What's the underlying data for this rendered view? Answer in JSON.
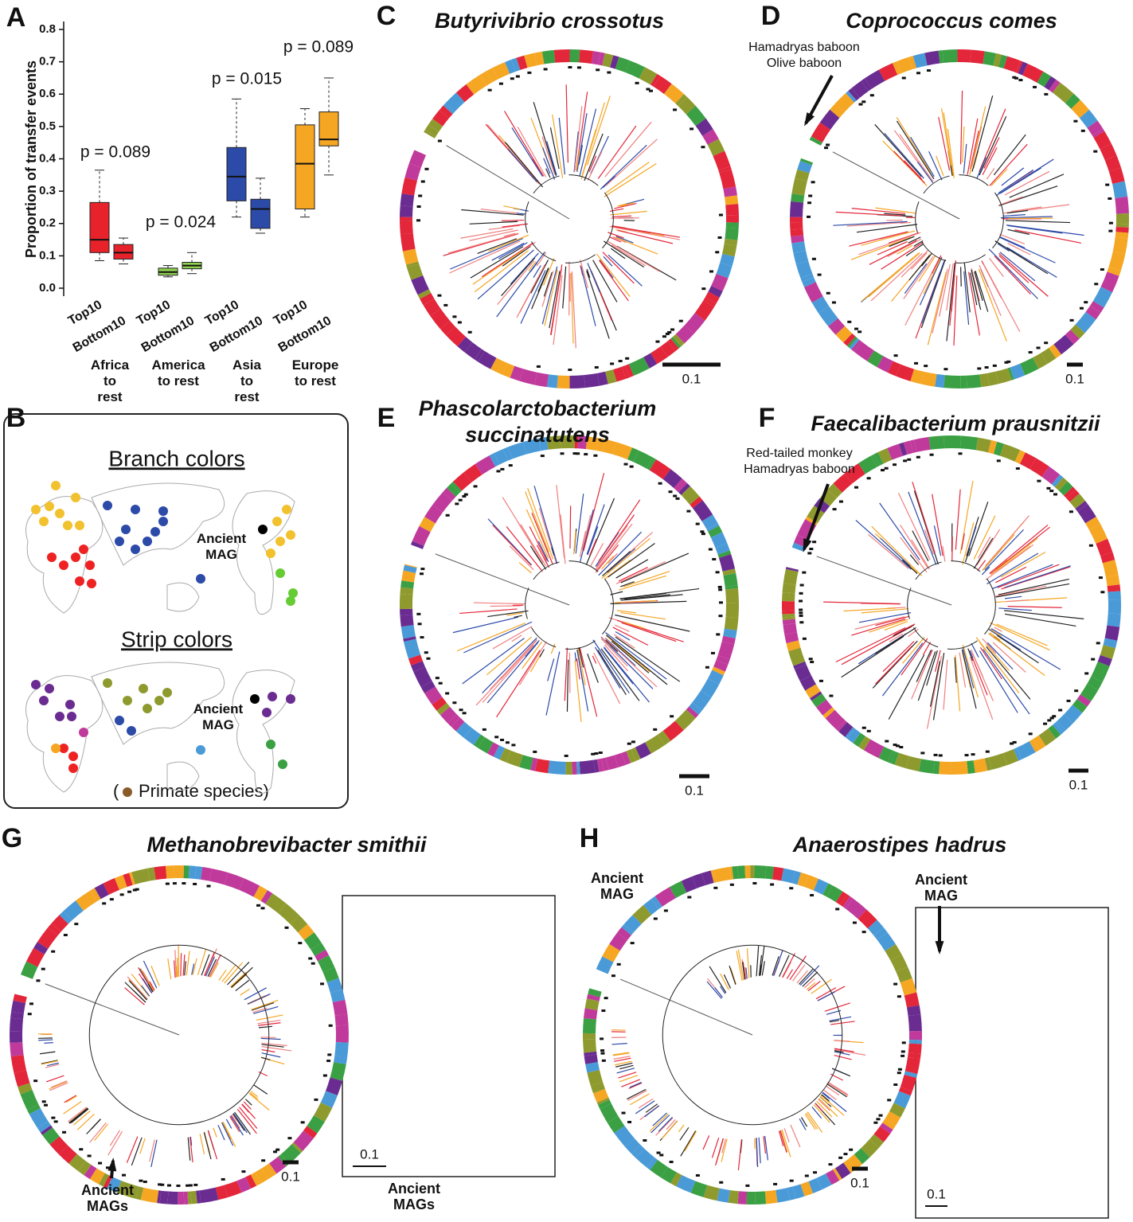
{
  "panel_a": {
    "chart_data": {
      "type": "box",
      "letter": "A",
      "ylabel": "Proportion of transfer events",
      "ylim": [
        0,
        0.8
      ],
      "yticks": [
        {
          "value": 0,
          "label": "0.0"
        },
        0.1,
        0.2,
        0.3,
        0.4,
        0.5,
        0.6,
        0.7,
        0.8
      ],
      "groups": [
        {
          "name": "Africa to rest",
          "color": "#e8222a",
          "annotation": "p = 0.089",
          "boxes": [
            {
              "label": "Top10",
              "min": 0.085,
              "q1": 0.11,
              "median": 0.15,
              "q3": 0.265,
              "max": 0.365
            },
            {
              "label": "Bottom10",
              "min": 0.075,
              "q1": 0.09,
              "median": 0.11,
              "q3": 0.135,
              "max": 0.155
            }
          ]
        },
        {
          "name": "America to rest",
          "color": "#8fd14f",
          "annotation": "p = 0.024",
          "boxes": [
            {
              "label": "Top10",
              "min": 0.035,
              "q1": 0.04,
              "median": 0.05,
              "q3": 0.062,
              "max": 0.07
            },
            {
              "label": "Bottom10",
              "min": 0.045,
              "q1": 0.06,
              "median": 0.07,
              "q3": 0.08,
              "max": 0.11
            }
          ]
        },
        {
          "name": "Asia to rest",
          "color": "#2c4aa8",
          "annotation": "p = 0.015",
          "boxes": [
            {
              "label": "Top10",
              "min": 0.22,
              "q1": 0.27,
              "median": 0.345,
              "q3": 0.435,
              "max": 0.585
            },
            {
              "label": "Bottom10",
              "min": 0.17,
              "q1": 0.185,
              "median": 0.245,
              "q3": 0.275,
              "max": 0.34
            }
          ]
        },
        {
          "name": "Europe to rest",
          "color": "#f5a623",
          "annotation": "p = 0.089",
          "boxes": [
            {
              "label": "Top10",
              "min": 0.22,
              "q1": 0.245,
              "median": 0.385,
              "q3": 0.505,
              "max": 0.555
            },
            {
              "label": "Bottom10",
              "min": 0.35,
              "q1": 0.44,
              "median": 0.46,
              "q3": 0.545,
              "max": 0.65
            }
          ]
        }
      ]
    }
  },
  "panel_b": {
    "letter": "B",
    "branch_title": "Branch colors",
    "strip_title": "Strip colors",
    "branch_mag": "Ancient MAG",
    "strip_mag": "Ancient MAG",
    "legend_open": "(",
    "legend_label": "Primate species)"
  },
  "trees": [
    {
      "letter": "C",
      "title": [
        "Butyrivibrio crossotus"
      ],
      "scale_label": "0.1",
      "annotations": []
    },
    {
      "letter": "D",
      "title": [
        "Coprococcus comes"
      ],
      "scale_label": "0.1",
      "annotations": [
        "Hamadryas baboon",
        "Olive baboon"
      ]
    },
    {
      "letter": "E",
      "title": [
        "Phascolarctobacterium",
        "succinatutens"
      ],
      "scale_label": "0.1",
      "annotations": []
    },
    {
      "letter": "F",
      "title": [
        "Faecalibacterium prausnitzii"
      ],
      "scale_label": "0.1",
      "annotations": [
        "Red-tailed monkey",
        "Hamadryas baboon"
      ]
    },
    {
      "letter": "G",
      "title": [
        "Methanobrevibacter smithii"
      ],
      "scale_label": "0.1",
      "inset_scale_label": "0.1",
      "annotations": [
        "Ancient MAGs",
        "Ancient MAGs"
      ]
    },
    {
      "letter": "H",
      "title": [
        "Anaerostipes hadrus"
      ],
      "scale_label": "0.1",
      "inset_scale_label": "0.1",
      "annotations": [
        "Ancient MAG",
        "Ancient MAG"
      ]
    }
  ]
}
